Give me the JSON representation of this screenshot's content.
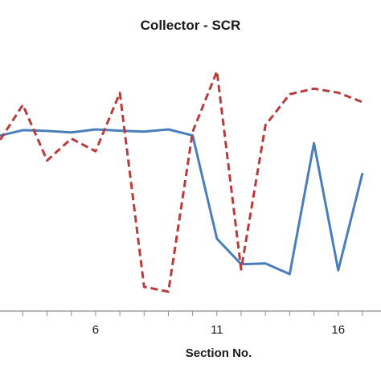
{
  "chart_data": {
    "type": "line",
    "title": "Collector - SCR",
    "xlabel": "Section No.",
    "ylabel": "",
    "x_ticks": [
      6,
      11,
      16
    ],
    "xlim": [
      1,
      17.2
    ],
    "ylim": [
      0,
      1
    ],
    "grid": false,
    "legend": "none",
    "series": [
      {
        "color": "#4a7ebb",
        "style": "solid",
        "x": [
          1,
          2,
          3,
          4,
          5,
          6,
          7,
          8,
          9,
          10,
          11,
          12,
          13,
          14,
          15,
          16,
          17
        ],
        "y": [
          0.656,
          0.687,
          0.71,
          0.707,
          0.701,
          0.713,
          0.708,
          0.704,
          0.713,
          0.689,
          0.284,
          0.184,
          0.187,
          0.145,
          0.659,
          0.16,
          0.542
        ]
      },
      {
        "color": "#b83c3c",
        "style": "dashed",
        "x": [
          1,
          2,
          3,
          4,
          5,
          6,
          7,
          8,
          9,
          10,
          11,
          12,
          13,
          14,
          15,
          16,
          17
        ],
        "y": [
          0.589,
          0.662,
          0.809,
          0.591,
          0.677,
          0.627,
          0.856,
          0.095,
          0.076,
          0.704,
          0.941,
          0.163,
          0.729,
          0.851,
          0.873,
          0.857,
          0.82
        ]
      }
    ]
  }
}
